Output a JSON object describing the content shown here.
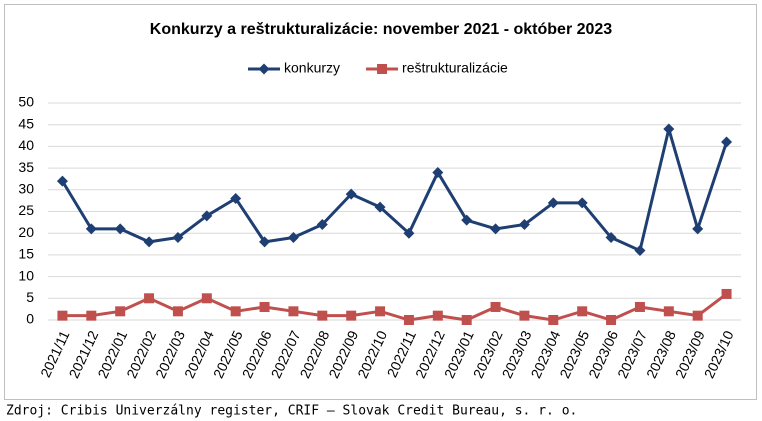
{
  "chart_data": {
    "type": "line",
    "title": "Konkurzy a reštrukturalizácie: november 2021 - október 2023",
    "categories": [
      "2021/11",
      "2021/12",
      "2022/01",
      "2022/02",
      "2022/03",
      "2022/04",
      "2022/05",
      "2022/06",
      "2022/07",
      "2022/08",
      "2022/09",
      "2022/10",
      "2022/11",
      "2022/12",
      "2023/01",
      "2023/02",
      "2023/03",
      "2023/04",
      "2023/05",
      "2023/06",
      "2023/07",
      "2023/08",
      "2023/09",
      "2023/10"
    ],
    "series": [
      {
        "name": "konkurzy",
        "color": "#1f3f73",
        "marker": "diamond",
        "values": [
          32,
          21,
          21,
          18,
          19,
          24,
          28,
          18,
          19,
          22,
          29,
          26,
          20,
          34,
          23,
          21,
          22,
          27,
          27,
          19,
          16,
          44,
          21,
          41
        ]
      },
      {
        "name": "reštrukturalizácie",
        "color": "#c0504d",
        "marker": "square",
        "values": [
          1,
          1,
          2,
          5,
          2,
          5,
          2,
          3,
          2,
          1,
          1,
          2,
          0,
          1,
          0,
          3,
          1,
          0,
          2,
          0,
          3,
          2,
          1,
          6
        ]
      }
    ],
    "ylim": [
      0,
      50
    ],
    "yticks": [
      0,
      5,
      10,
      15,
      20,
      25,
      30,
      35,
      40,
      45,
      50
    ],
    "grid": true,
    "legend": "top",
    "source": "Zdroj: Cribis Univerzálny register, CRIF – Slovak Credit Bureau, s. r. o."
  }
}
